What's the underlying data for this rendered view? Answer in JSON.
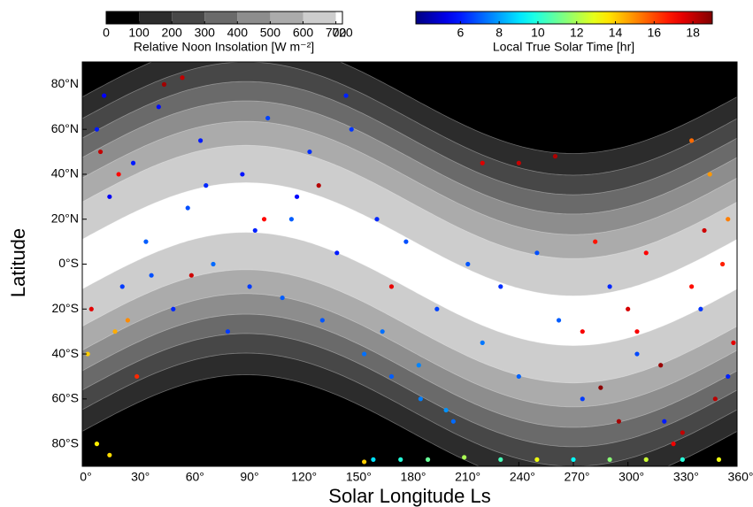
{
  "chart_data": {
    "type": "scatter",
    "xlabel": "Solar Longitude Ls",
    "ylabel": "Latitude",
    "xlim": [
      0,
      360
    ],
    "ylim": [
      -90,
      90
    ],
    "xticks": [
      {
        "value": 0,
        "label": "0°"
      },
      {
        "value": 30,
        "label": "30°"
      },
      {
        "value": 60,
        "label": "60°"
      },
      {
        "value": 90,
        "label": "90°"
      },
      {
        "value": 120,
        "label": "120°"
      },
      {
        "value": 150,
        "label": "150°"
      },
      {
        "value": 180,
        "label": "180°"
      },
      {
        "value": 210,
        "label": "210°"
      },
      {
        "value": 240,
        "label": "240°"
      },
      {
        "value": 270,
        "label": "270°"
      },
      {
        "value": 300,
        "label": "300°"
      },
      {
        "value": 330,
        "label": "330°"
      },
      {
        "value": 360,
        "label": "360°"
      }
    ],
    "yticks": [
      {
        "value": 80,
        "label": "80°N"
      },
      {
        "value": 60,
        "label": "60°N"
      },
      {
        "value": 40,
        "label": "40°N"
      },
      {
        "value": 20,
        "label": "20°N"
      },
      {
        "value": 0,
        "label": "0°S"
      },
      {
        "value": -20,
        "label": "20°S"
      },
      {
        "value": -40,
        "label": "40°S"
      },
      {
        "value": -60,
        "label": "60°S"
      },
      {
        "value": -80,
        "label": "80°S"
      }
    ],
    "x": [
      8,
      15,
      22,
      28,
      35,
      42,
      50,
      58,
      65,
      72,
      80,
      88,
      95,
      102,
      110,
      118,
      125,
      132,
      140,
      148,
      155,
      162,
      170,
      178,
      186,
      195,
      204,
      212,
      220,
      230,
      240,
      250,
      262,
      275,
      290,
      305,
      320,
      340,
      355,
      12,
      38,
      68,
      92,
      115,
      145,
      165,
      185,
      200,
      5,
      10,
      20,
      30,
      45,
      55,
      60,
      100,
      130,
      170,
      220,
      240,
      260,
      275,
      282,
      295,
      300,
      310,
      318,
      325,
      335,
      342,
      348,
      352,
      358,
      285,
      305,
      330,
      3,
      8,
      18,
      25,
      345,
      355,
      335,
      15,
      160,
      175,
      190,
      210,
      230,
      250,
      270,
      290,
      310,
      330,
      350,
      155
    ],
    "y": [
      60,
      30,
      -10,
      45,
      10,
      70,
      -20,
      25,
      55,
      0,
      -30,
      40,
      15,
      65,
      -15,
      30,
      50,
      -25,
      5,
      60,
      -40,
      20,
      -50,
      10,
      -60,
      -20,
      -70,
      0,
      -35,
      -10,
      -50,
      5,
      -25,
      -60,
      -10,
      -40,
      -70,
      -20,
      -50,
      75,
      -5,
      35,
      -10,
      20,
      75,
      -30,
      -45,
      -65,
      -20,
      50,
      40,
      -50,
      80,
      83,
      -5,
      20,
      35,
      -10,
      45,
      45,
      48,
      -30,
      10,
      -70,
      -20,
      5,
      -45,
      -80,
      -10,
      15,
      -60,
      0,
      -35,
      -55,
      -30,
      -75,
      -40,
      -80,
      -30,
      -25,
      40,
      20,
      55,
      -85,
      -87,
      -87,
      -87,
      -86,
      -87,
      -87,
      -87,
      -87,
      -87,
      -87,
      -87,
      -88
    ],
    "values": [
      6,
      5.5,
      6.5,
      6,
      7,
      5.8,
      6.2,
      6.8,
      6,
      7.2,
      6.5,
      5.9,
      6.1,
      6.6,
      7,
      5.7,
      6.3,
      6.9,
      6,
      6.4,
      7.3,
      6.2,
      7,
      6.8,
      7.5,
      6.6,
      7.2,
      6.9,
      7.4,
      6.3,
      7.1,
      6.8,
      7,
      6.5,
      6.2,
      6.7,
      6,
      6.4,
      6.1,
      5.6,
      6.8,
      6.2,
      6.5,
      7,
      6.1,
      7.3,
      7.6,
      7.8,
      17.5,
      18,
      17,
      16.5,
      18.5,
      18,
      17.8,
      17,
      18.2,
      17.4,
      17.6,
      17.9,
      18.3,
      17.2,
      16.8,
      18.4,
      17.7,
      17.1,
      18.6,
      17.3,
      16.9,
      17.8,
      18.1,
      16.6,
      17.5,
      18.8,
      17.2,
      18,
      14,
      13.5,
      14.5,
      15,
      14.8,
      15.2,
      15.5,
      13.8,
      9,
      10,
      11,
      12,
      10.5,
      13,
      9.5,
      11.5,
      12.5,
      10,
      13,
      14
    ]
  },
  "colorbars": [
    {
      "label": "Relative Noon Insolation [W m⁻²]",
      "lim": [
        0,
        720
      ],
      "ticks": [
        0,
        100,
        200,
        300,
        400,
        500,
        600,
        700,
        720
      ],
      "colors": [
        "#000000",
        "#2c2c2c",
        "#474747",
        "#6a6a6a",
        "#8d8d8d",
        "#ababab",
        "#cdcdcd",
        "#ffffff"
      ]
    },
    {
      "label": "Local True Solar Time [hr]",
      "lim": [
        3.7,
        19
      ],
      "ticks": [
        6,
        8,
        10,
        12,
        14,
        16,
        18
      ],
      "colormap": "jet"
    }
  ]
}
